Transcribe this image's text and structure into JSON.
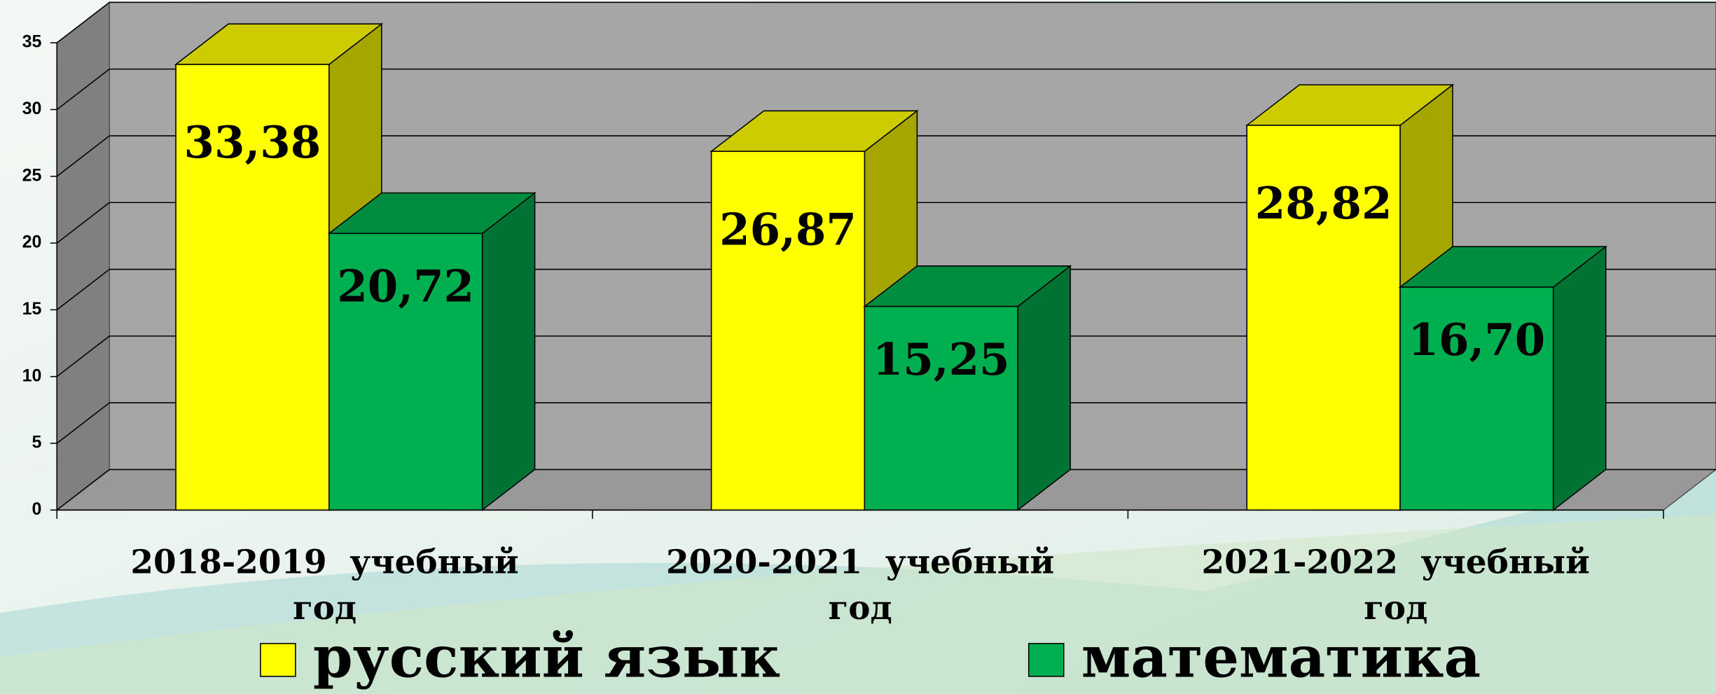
{
  "chart_data": {
    "type": "bar3d",
    "categories": [
      "2018-2019  учебный год",
      "2020-2021  учебный год",
      "2021-2022  учебный год"
    ],
    "series": [
      {
        "name": "русский язык",
        "color": "#ffff00",
        "values": [
          33.38,
          26.87,
          28.82
        ],
        "value_labels": [
          "33,38",
          "26,87",
          "28,82"
        ]
      },
      {
        "name": "математика",
        "color": "#00b050",
        "values": [
          20.72,
          15.25,
          16.7
        ],
        "value_labels": [
          "20,72",
          "15,25",
          "16,70"
        ]
      }
    ],
    "ylim": [
      0,
      35
    ],
    "yticks": [
      0,
      5,
      10,
      15,
      20,
      25,
      30,
      35
    ],
    "grid": true,
    "legend": "bottom"
  }
}
